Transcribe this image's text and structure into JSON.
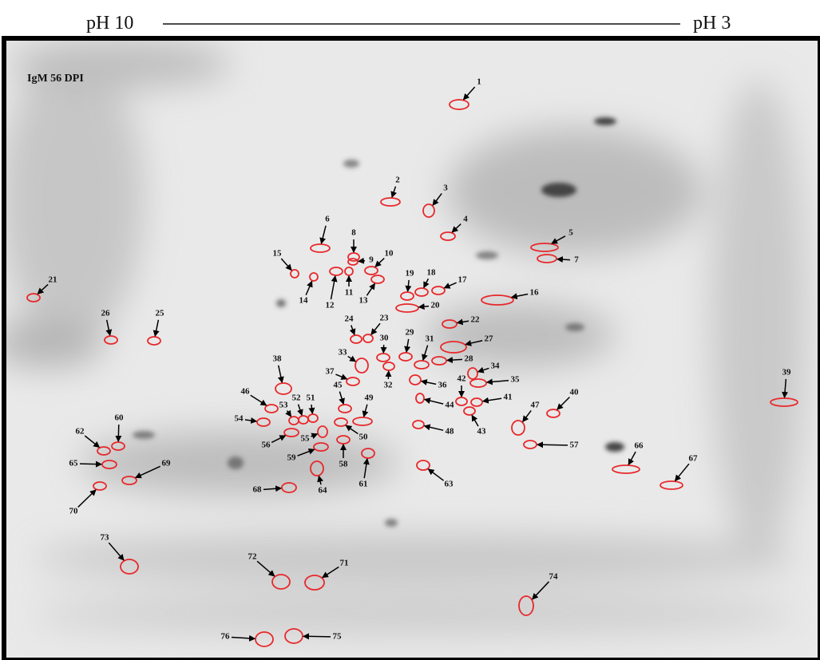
{
  "header": {
    "left_label": "pH 10",
    "right_label": "pH 3"
  },
  "panel_label": "IgM 56 DPI",
  "spots": [
    "1",
    "2",
    "3",
    "4",
    "5",
    "6",
    "7",
    "8",
    "9",
    "10",
    "11",
    "12",
    "13",
    "14",
    "15",
    "16",
    "17",
    "18",
    "19",
    "20",
    "21",
    "22",
    "23",
    "24",
    "25",
    "26",
    "27",
    "28",
    "29",
    "30",
    "31",
    "32",
    "33",
    "34",
    "35",
    "36",
    "37",
    "38",
    "39",
    "40",
    "41",
    "42",
    "43",
    "44",
    "45",
    "46",
    "47",
    "48",
    "49",
    "50",
    "51",
    "52",
    "53",
    "54",
    "55",
    "56",
    "57",
    "58",
    "59",
    "60",
    "61",
    "62",
    "63",
    "64",
    "65",
    "66",
    "67",
    "68",
    "69",
    "70",
    "71",
    "72",
    "73",
    "74",
    "75",
    "76"
  ]
}
